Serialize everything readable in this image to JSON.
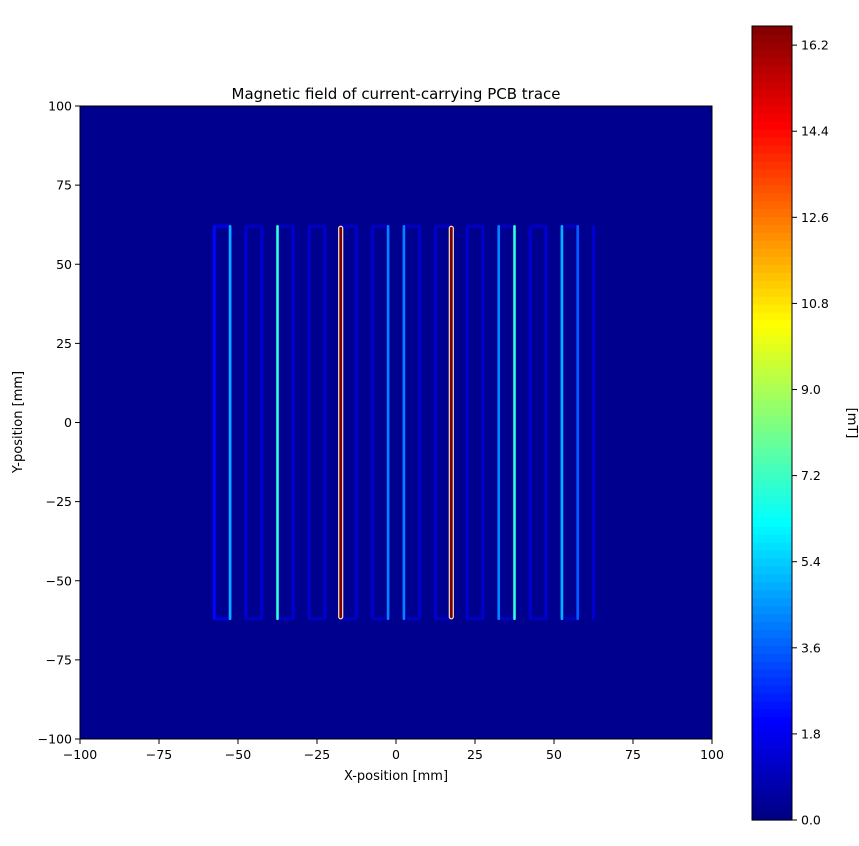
{
  "chart_data": {
    "type": "heatmap",
    "title": "Magnetic field of current-carrying PCB trace",
    "xlabel": "X-position [mm]",
    "ylabel": "Y-position [mm]",
    "xlim": [
      -100,
      100
    ],
    "ylim": [
      -100,
      100
    ],
    "xticks": [
      -100,
      -75,
      -50,
      -25,
      0,
      25,
      50,
      75,
      100
    ],
    "xtick_labels": [
      "−100",
      "−75",
      "−50",
      "−25",
      "0",
      "25",
      "50",
      "75",
      "100"
    ],
    "yticks": [
      100,
      75,
      50,
      25,
      0,
      -25,
      -50,
      -75,
      -100
    ],
    "ytick_labels": [
      "100",
      "75",
      "50",
      "25",
      "0",
      "−25",
      "−50",
      "−75",
      "−100"
    ],
    "colorbar": {
      "label": "[mT]",
      "colormap": "jet",
      "range": [
        0.0,
        16.6
      ],
      "ticks": [
        0.0,
        1.8,
        3.6,
        5.4,
        7.2,
        9.0,
        10.8,
        12.6,
        14.4,
        16.2
      ],
      "tick_labels": [
        "0.0",
        "1.8",
        "3.6",
        "5.4",
        "7.2",
        "9.0",
        "10.8",
        "12.6",
        "14.4",
        "16.2"
      ]
    },
    "background_value": 0.0,
    "trace": {
      "y_range": [
        -62,
        62
      ],
      "pairs": [
        {
          "x": [
            -57.5,
            -52.5
          ],
          "field": 1.5
        },
        {
          "x": [
            -47.5,
            -42.5
          ],
          "field": 1.0
        },
        {
          "x": [
            -37.5,
            -32.5
          ],
          "field": 1.0
        },
        {
          "x": [
            -27.5,
            -22.5
          ],
          "field": 1.0
        },
        {
          "x": [
            -17.5,
            -12.5
          ],
          "field": 1.0
        },
        {
          "x": [
            -7.5,
            -2.5
          ],
          "field": 1.0
        },
        {
          "x": [
            2.5,
            7.5
          ],
          "field": 1.0
        },
        {
          "x": [
            12.5,
            17.5
          ],
          "field": 1.0
        },
        {
          "x": [
            22.5,
            27.5
          ],
          "field": 1.0
        },
        {
          "x": [
            32.5,
            37.5
          ],
          "field": 1.0
        },
        {
          "x": [
            42.5,
            47.5
          ],
          "field": 1.0
        },
        {
          "x": [
            52.5,
            57.5
          ],
          "field": 1.0
        }
      ],
      "conductors": [
        {
          "x": -57.5,
          "field": 2.2
        },
        {
          "x": -52.5,
          "field": 5.0
        },
        {
          "x": -47.5,
          "field": 1.4
        },
        {
          "x": -42.5,
          "field": 1.3
        },
        {
          "x": -37.5,
          "field": 7.0
        },
        {
          "x": -32.5,
          "field": 1.4
        },
        {
          "x": -27.5,
          "field": 1.3
        },
        {
          "x": -22.5,
          "field": 1.3
        },
        {
          "x": -17.5,
          "field": 16.6
        },
        {
          "x": -12.5,
          "field": 1.3
        },
        {
          "x": -7.5,
          "field": 1.3
        },
        {
          "x": -2.5,
          "field": 4.2
        },
        {
          "x": 2.5,
          "field": 4.2
        },
        {
          "x": 7.5,
          "field": 1.3
        },
        {
          "x": 12.5,
          "field": 1.3
        },
        {
          "x": 17.5,
          "field": 16.6
        },
        {
          "x": 22.5,
          "field": 1.3
        },
        {
          "x": 27.5,
          "field": 1.3
        },
        {
          "x": 32.5,
          "field": 4.2
        },
        {
          "x": 37.5,
          "field": 7.0
        },
        {
          "x": 42.5,
          "field": 1.3
        },
        {
          "x": 47.5,
          "field": 1.3
        },
        {
          "x": 52.5,
          "field": 5.0
        },
        {
          "x": 57.5,
          "field": 3.6
        },
        {
          "x": 62.5,
          "field": 1.6
        }
      ]
    }
  }
}
